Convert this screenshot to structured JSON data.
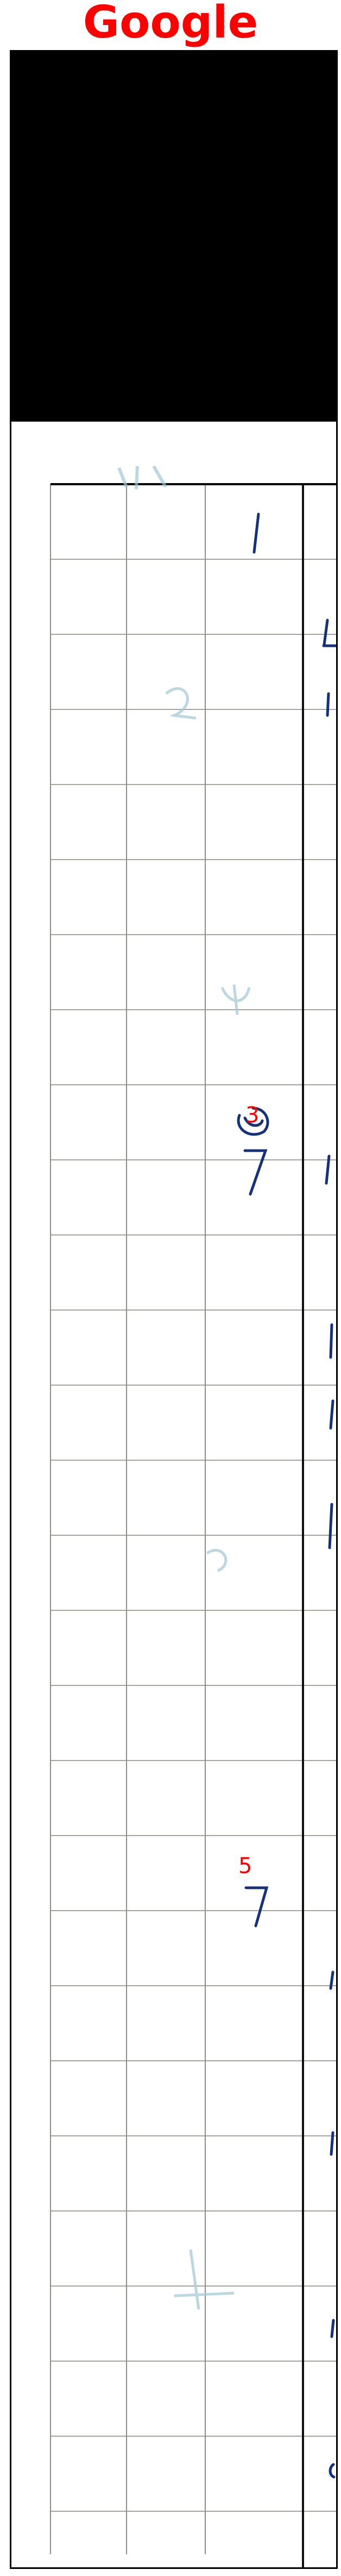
{
  "header": {
    "title": "Google"
  },
  "annotations": [
    "3",
    "5"
  ],
  "colors": {
    "title": "#ff0000",
    "annotation": "#ff0000",
    "ink": "#17307a",
    "grid": "#8a9088",
    "frame": "#000000"
  }
}
